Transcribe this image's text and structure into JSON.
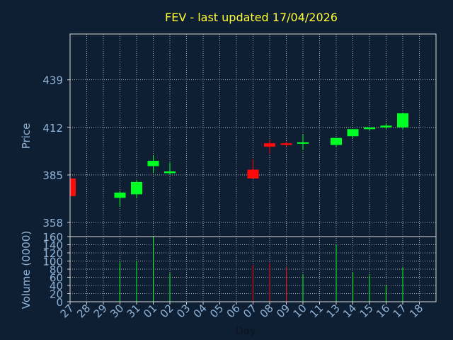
{
  "chart_data": {
    "type": "candlestick",
    "title": "FEV - last updated 17/04/2026",
    "xlabel": "Day",
    "price_panel": {
      "ylabel": "Price",
      "yticks": [
        358,
        385,
        412,
        439
      ],
      "ylim": [
        350,
        465
      ]
    },
    "volume_panel": {
      "ylabel": "Volume (0000)",
      "yticks": [
        0,
        20,
        40,
        60,
        80,
        100,
        120,
        140,
        160
      ],
      "ylim": [
        0,
        160
      ]
    },
    "x_tick_labels": [
      "27",
      "28",
      "29",
      "30",
      "31",
      "01",
      "02",
      "03",
      "04",
      "05",
      "06",
      "07",
      "08",
      "09",
      "10",
      "11",
      "13",
      "14",
      "15",
      "16",
      "17",
      "18"
    ],
    "candles": [
      {
        "day": "27",
        "open": 383,
        "close": 373,
        "high": 383,
        "low": 373,
        "volume": 0
      },
      {
        "day": "30",
        "open": 372,
        "close": 375,
        "high": 376,
        "low": 367,
        "volume": 97
      },
      {
        "day": "31",
        "open": 374,
        "close": 381,
        "high": 382,
        "low": 372,
        "volume": 100
      },
      {
        "day": "01",
        "open": 390,
        "close": 393,
        "high": 396,
        "low": 386,
        "volume": 160
      },
      {
        "day": "02",
        "open": 386,
        "close": 387,
        "high": 392,
        "low": 385,
        "volume": 70
      },
      {
        "day": "07",
        "open": 388,
        "close": 383,
        "high": 394,
        "low": 383,
        "volume": 90
      },
      {
        "day": "08",
        "open": 403,
        "close": 401,
        "high": 405,
        "low": 397,
        "volume": 95
      },
      {
        "day": "09",
        "open": 403,
        "close": 402,
        "high": 404,
        "low": 401,
        "volume": 85
      },
      {
        "day": "10",
        "open": 403,
        "close": 403.5,
        "high": 408,
        "low": 399,
        "volume": 68
      },
      {
        "day": "13",
        "open": 402,
        "close": 406,
        "high": 406,
        "low": 401,
        "volume": 140
      },
      {
        "day": "14",
        "open": 407,
        "close": 411,
        "high": 411,
        "low": 406,
        "volume": 72
      },
      {
        "day": "15",
        "open": 411,
        "close": 412,
        "high": 412,
        "low": 410,
        "volume": 65
      },
      {
        "day": "16",
        "open": 412,
        "close": 413,
        "high": 414,
        "low": 411,
        "volume": 40
      },
      {
        "day": "17",
        "open": 412,
        "close": 420,
        "high": 420,
        "low": 411,
        "volume": 85
      }
    ],
    "colors": {
      "up": "#00ff22",
      "down": "#ff0a0a",
      "background": "#0f1f33",
      "grid": "#d0d0d0",
      "title": "#ffff33",
      "ticks": "#8fb4d9"
    }
  }
}
